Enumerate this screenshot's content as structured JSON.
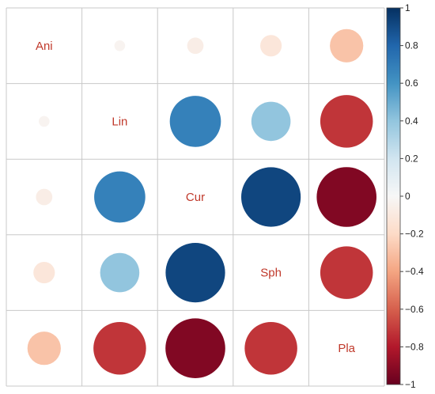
{
  "chart_data": {
    "type": "correlation-matrix",
    "variables": [
      "Ani",
      "Lin",
      "Cur",
      "Sph",
      "Pla"
    ],
    "matrix": [
      [
        1.0,
        -0.03,
        -0.07,
        -0.12,
        -0.29
      ],
      [
        -0.03,
        1.0,
        0.68,
        0.4,
        -0.72
      ],
      [
        -0.07,
        0.68,
        1.0,
        0.92,
        -0.93
      ],
      [
        -0.12,
        0.4,
        0.92,
        1.0,
        -0.72
      ],
      [
        -0.29,
        -0.72,
        -0.93,
        -0.72,
        1.0
      ]
    ],
    "colorbar": {
      "range": [
        -1,
        1
      ],
      "ticks": [
        "1",
        "0.8",
        "0.6",
        "0.4",
        "0.2",
        "0",
        "−0.2",
        "−0.4",
        "−0.6",
        "−0.8",
        "−1"
      ]
    },
    "colors": {
      "positive": "#053061",
      "neutral": "#f7f7f7",
      "negative": "#67001f",
      "label": "#c0392b",
      "grid": "#c8c8c8"
    }
  }
}
